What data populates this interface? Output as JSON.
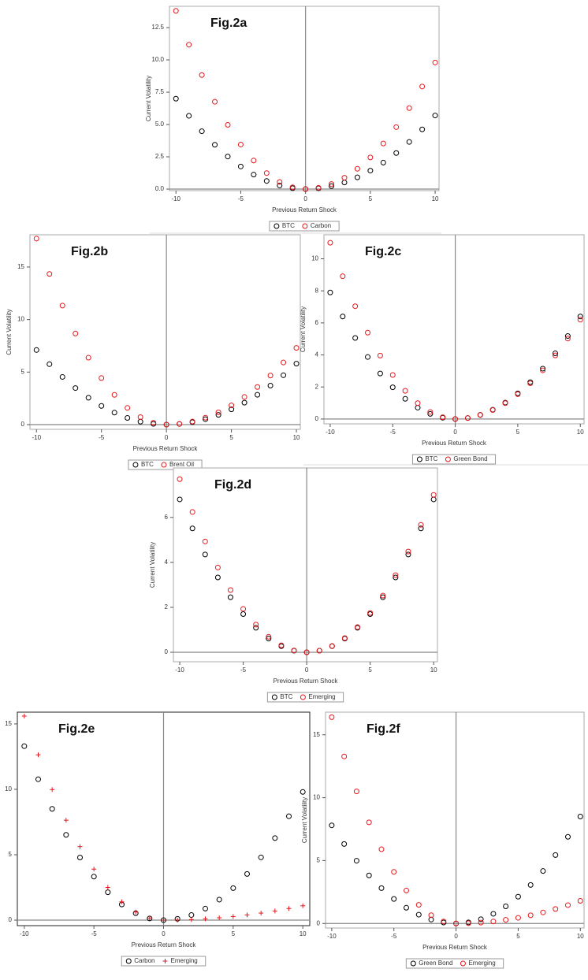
{
  "chart_data": [
    {
      "type": "scatter",
      "title": "Fig.2a",
      "x_label": "Previous Return Shock",
      "y_label": "Current Volatility",
      "x": [
        -10,
        -9,
        -8,
        -7,
        -6,
        -5,
        -4,
        -3,
        -2,
        -1,
        0,
        1,
        2,
        3,
        4,
        5,
        6,
        7,
        8,
        9,
        10
      ],
      "series": [
        {
          "name": "BTC",
          "color": "#000000",
          "marker": "circle",
          "values": [
            7,
            5.67,
            4.48,
            3.43,
            2.52,
            1.75,
            1.12,
            0.63,
            0.28,
            0.07,
            0,
            0.06,
            0.23,
            0.51,
            0.91,
            1.43,
            2.05,
            2.79,
            3.65,
            4.62,
            5.7
          ]
        },
        {
          "name": "Carbon",
          "color": "#e8171c",
          "marker": "circle",
          "values": [
            13.8,
            11.18,
            8.83,
            6.76,
            4.97,
            3.45,
            2.21,
            1.24,
            0.55,
            0.14,
            0,
            0.1,
            0.39,
            0.88,
            1.57,
            2.45,
            3.53,
            4.8,
            6.27,
            7.94,
            9.8
          ]
        }
      ],
      "xlim": [
        -10.5,
        10.3
      ],
      "ylim": [
        -0.12,
        14.15
      ],
      "xticks": [
        -10,
        -5,
        0,
        5,
        10
      ],
      "yticks": [
        {
          "value": 0,
          "label": "0.0"
        },
        {
          "value": 2.5,
          "label": "2.5"
        },
        {
          "value": 5,
          "label": "5.0"
        },
        {
          "value": 7.5,
          "label": "7.5"
        },
        {
          "value": 10,
          "label": "10.0"
        },
        {
          "value": 12.5,
          "label": "12.5"
        }
      ],
      "reference_lines": {
        "x": 0,
        "y": 0
      }
    },
    {
      "type": "scatter",
      "title": "Fig.2b",
      "x_label": "Previous Return Shock",
      "y_label": "Current Volatility",
      "x": [
        -10,
        -9,
        -8,
        -7,
        -6,
        -5,
        -4,
        -3,
        -2,
        -1,
        0,
        1,
        2,
        3,
        4,
        5,
        6,
        7,
        8,
        9,
        10
      ],
      "series": [
        {
          "name": "BTC",
          "color": "#000000",
          "marker": "circle",
          "values": [
            7.1,
            5.75,
            4.54,
            3.48,
            2.56,
            1.78,
            1.14,
            0.64,
            0.28,
            0.07,
            0,
            0.06,
            0.23,
            0.52,
            0.93,
            1.45,
            2.09,
            2.84,
            3.71,
            4.7,
            5.8
          ]
        },
        {
          "name": "Brent Oil",
          "color": "#e8171c",
          "marker": "circle",
          "values": [
            17.7,
            14.34,
            11.33,
            8.67,
            6.37,
            4.43,
            2.83,
            1.59,
            0.71,
            0.18,
            0,
            0.07,
            0.29,
            0.66,
            1.17,
            1.83,
            2.63,
            3.58,
            4.67,
            5.91,
            7.3
          ]
        }
      ],
      "xlim": [
        -10.5,
        10.3
      ],
      "ylim": [
        -0.45,
        18.07
      ],
      "xticks": [
        -10,
        -5,
        0,
        5,
        10
      ],
      "yticks": [
        0,
        5,
        10,
        15
      ],
      "reference_lines": {
        "x": 0,
        "y": 0
      }
    },
    {
      "type": "scatter",
      "title": "Fig.2c",
      "x_label": "Previous Return Shock",
      "y_label": "Current Volatility",
      "x": [
        -10,
        -9,
        -8,
        -7,
        -6,
        -5,
        -4,
        -3,
        -2,
        -1,
        0,
        1,
        2,
        3,
        4,
        5,
        6,
        7,
        8,
        9,
        10
      ],
      "series": [
        {
          "name": "BTC",
          "color": "#000000",
          "marker": "circle",
          "values": [
            7.9,
            6.4,
            5.06,
            3.87,
            2.84,
            1.98,
            1.26,
            0.71,
            0.32,
            0.08,
            0,
            0.06,
            0.26,
            0.58,
            1.02,
            1.6,
            2.3,
            3.14,
            4.1,
            5.18,
            6.4
          ]
        },
        {
          "name": "Green Bond",
          "color": "#e8171c",
          "marker": "circle",
          "values": [
            11,
            8.91,
            7.04,
            5.39,
            3.96,
            2.75,
            1.76,
            0.99,
            0.44,
            0.11,
            0,
            0.06,
            0.25,
            0.56,
            0.99,
            1.55,
            2.23,
            3.04,
            3.97,
            5.02,
            6.2
          ]
        }
      ],
      "xlim": [
        -10.5,
        10.3
      ],
      "ylim": [
        -0.3,
        11.5
      ],
      "xticks": [
        -10,
        -5,
        0,
        5,
        10
      ],
      "yticks": [
        0,
        2,
        4,
        6,
        8,
        10
      ],
      "reference_lines": {
        "x": 0,
        "y": 0
      }
    },
    {
      "type": "scatter",
      "title": "Fig.2d",
      "x_label": "Previous Return Shock",
      "y_label": "Current Volatility",
      "x": [
        -10,
        -9,
        -8,
        -7,
        -6,
        -5,
        -4,
        -3,
        -2,
        -1,
        0,
        1,
        2,
        3,
        4,
        5,
        6,
        7,
        8,
        9,
        10
      ],
      "series": [
        {
          "name": "BTC",
          "color": "#000000",
          "marker": "circle",
          "values": [
            6.8,
            5.51,
            4.35,
            3.33,
            2.45,
            1.7,
            1.09,
            0.61,
            0.27,
            0.07,
            0,
            0.07,
            0.27,
            0.61,
            1.09,
            1.7,
            2.45,
            3.33,
            4.35,
            5.51,
            6.8
          ]
        },
        {
          "name": "Emerging",
          "color": "#e8171c",
          "marker": "circle",
          "values": [
            7.7,
            6.24,
            4.93,
            3.77,
            2.77,
            1.93,
            1.23,
            0.69,
            0.31,
            0.08,
            0,
            0.07,
            0.28,
            0.63,
            1.12,
            1.75,
            2.52,
            3.43,
            4.48,
            5.67,
            7
          ]
        }
      ],
      "xlim": [
        -10.5,
        10.3
      ],
      "ylim": [
        -0.42,
        8.2
      ],
      "xticks": [
        -10,
        -5,
        0,
        5,
        10
      ],
      "yticks": [
        0,
        2,
        4,
        6
      ],
      "reference_lines": {
        "x": 0,
        "y": 0
      }
    },
    {
      "type": "scatter",
      "title": "Fig.2e",
      "x_label": "Previous Return Shock",
      "y_label": "Current Volatility",
      "x": [
        -10,
        -9,
        -8,
        -7,
        -6,
        -5,
        -4,
        -3,
        -2,
        -1,
        0,
        1,
        2,
        3,
        4,
        5,
        6,
        7,
        8,
        9,
        10
      ],
      "series": [
        {
          "name": "Carbon",
          "color": "#000000",
          "marker": "circle",
          "values": [
            13.3,
            10.77,
            8.51,
            6.52,
            4.79,
            3.33,
            2.13,
            1.2,
            0.53,
            0.13,
            0,
            0.1,
            0.39,
            0.88,
            1.57,
            2.45,
            3.53,
            4.8,
            6.27,
            7.94,
            9.8
          ]
        },
        {
          "name": "Emerging",
          "color": "#e8171c",
          "marker": "plus",
          "values": [
            15.6,
            12.64,
            9.98,
            7.64,
            5.62,
            3.9,
            2.5,
            1.4,
            0.62,
            0.16,
            0,
            0.01,
            0.04,
            0.1,
            0.18,
            0.28,
            0.4,
            0.54,
            0.7,
            0.89,
            1.1
          ]
        }
      ],
      "xlim": [
        -10.5,
        10.5
      ],
      "ylim": [
        -0.42,
        15.9
      ],
      "xticks": [
        -10,
        -5,
        0,
        5,
        10
      ],
      "yticks": [
        0,
        5,
        10,
        15
      ],
      "reference_lines": {
        "x": 0,
        "y": 0
      }
    },
    {
      "type": "scatter",
      "title": "Fig.2f",
      "x_label": "Previous Return Shock",
      "y_label": "Current Volatility",
      "x": [
        -10,
        -9,
        -8,
        -7,
        -6,
        -5,
        -4,
        -3,
        -2,
        -1,
        0,
        1,
        2,
        3,
        4,
        5,
        6,
        7,
        8,
        9,
        10
      ],
      "series": [
        {
          "name": "Green Bond",
          "color": "#000000",
          "marker": "circle",
          "values": [
            7.8,
            6.32,
            4.99,
            3.82,
            2.81,
            1.95,
            1.25,
            0.7,
            0.31,
            0.08,
            0,
            0.09,
            0.34,
            0.77,
            1.36,
            2.13,
            3.06,
            4.17,
            5.44,
            6.89,
            8.5
          ]
        },
        {
          "name": "Emerging",
          "color": "#e8171c",
          "marker": "circle",
          "values": [
            16.4,
            13.28,
            10.5,
            8.04,
            5.9,
            4.1,
            2.62,
            1.48,
            0.66,
            0.16,
            0,
            0.02,
            0.07,
            0.16,
            0.29,
            0.45,
            0.65,
            0.88,
            1.15,
            1.46,
            1.8
          ]
        }
      ],
      "xlim": [
        -10.5,
        10.3
      ],
      "ylim": [
        -0.36,
        16.8
      ],
      "xticks": [
        -10,
        -5,
        0,
        5,
        10
      ],
      "yticks": [
        0,
        5,
        10,
        15
      ],
      "reference_lines": {
        "x": 0,
        "y": 0
      }
    }
  ]
}
